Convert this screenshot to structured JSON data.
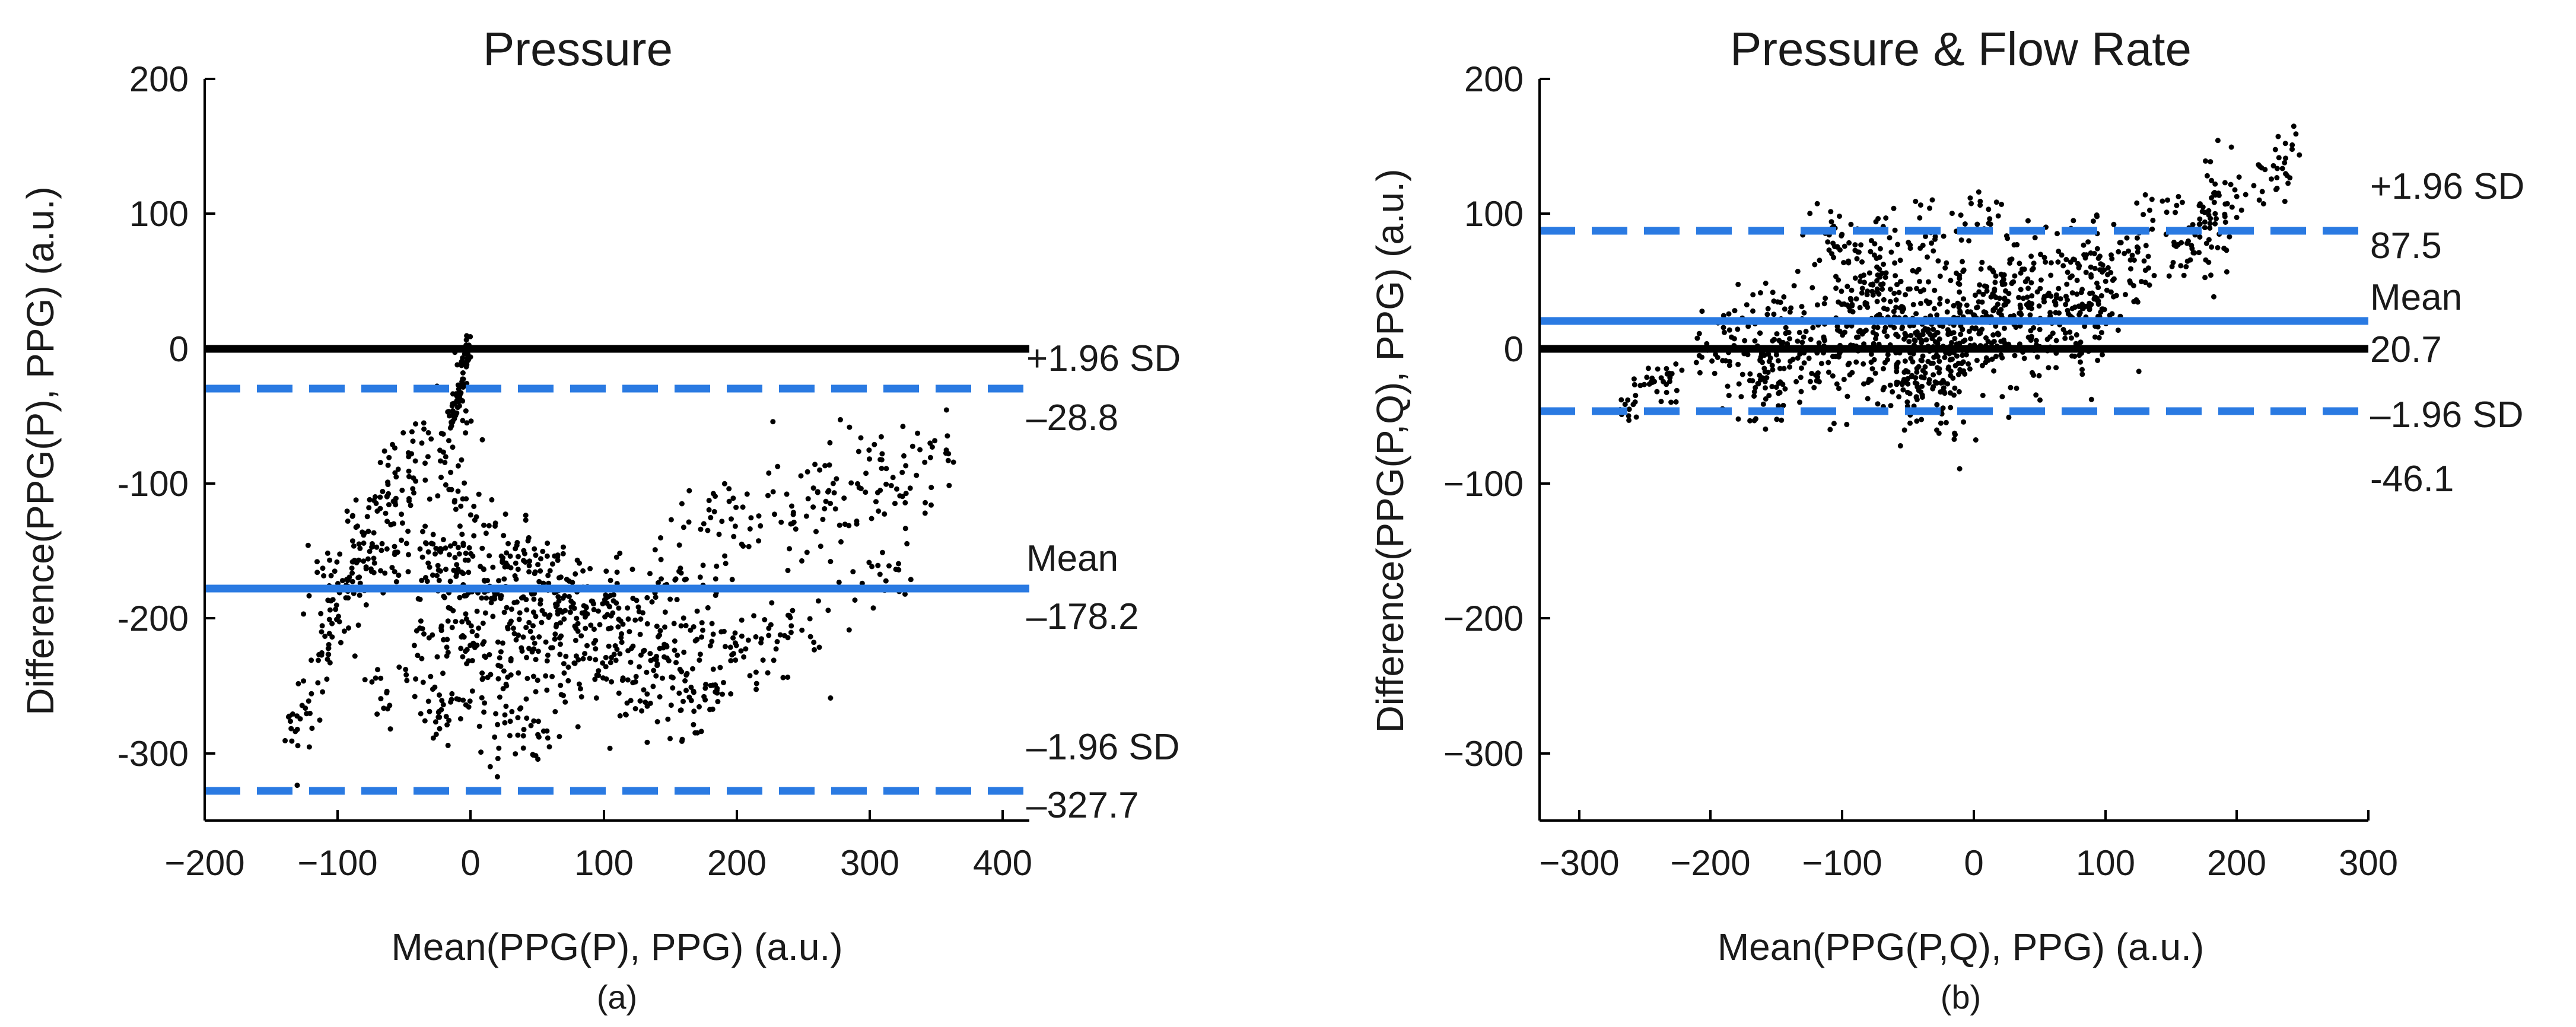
{
  "colors": {
    "mean_line": "#2a7ae2",
    "sd_line": "#2a7ae2",
    "zero_line": "#000000",
    "points": "#000000",
    "axis": "#000000"
  },
  "chart_data": [
    {
      "type": "scatter",
      "panel_label": "(a)",
      "title": "Pressure",
      "xlabel": "Mean(PPG(P), PPG) (a.u.)",
      "ylabel": "Difference(PPG(P), PPG) (a.u.)",
      "xlim": [
        -200,
        420
      ],
      "ylim": [
        -350,
        200
      ],
      "xticks": [
        -200,
        -100,
        0,
        100,
        200,
        300,
        400
      ],
      "yticks": [
        200,
        100,
        0,
        -100,
        -200,
        -300
      ],
      "xtick_labels": [
        "−200",
        "−100",
        "0",
        "100",
        "200",
        "300",
        "400"
      ],
      "ytick_labels": [
        "200",
        "100",
        "0",
        "-100",
        "-200",
        "-300"
      ],
      "zero_line": 0,
      "mean": -178.2,
      "upper_loa": -28.8,
      "lower_loa": -327.7,
      "line_labels": {
        "upper_name": "+1.96 SD",
        "upper_value": "–28.8",
        "mean_name": "Mean",
        "mean_value": "–178.2",
        "lower_name": "–1.96 SD",
        "lower_value": "–327.7"
      },
      "scatter_clusters": [
        {
          "x": [
            -140,
            -40
          ],
          "y": [
            -300,
            -60
          ],
          "spread": 15,
          "n": 110
        },
        {
          "x": [
            -15,
            0
          ],
          "y": [
            -60,
            10
          ],
          "spread": 6,
          "n": 60
        },
        {
          "x": [
            -120,
            0
          ],
          "y": [
            -200,
            -40
          ],
          "spread": 25,
          "n": 120
        },
        {
          "x": [
            -60,
            180
          ],
          "y": [
            -150,
            -200
          ],
          "spread": 18,
          "n": 180
        },
        {
          "x": [
            -20,
            200
          ],
          "y": [
            -180,
            -230
          ],
          "spread": 22,
          "n": 220
        },
        {
          "x": [
            -40,
            180
          ],
          "y": [
            -210,
            -270
          ],
          "spread": 20,
          "n": 180
        },
        {
          "x": [
            -80,
            60
          ],
          "y": [
            -250,
            -290
          ],
          "spread": 14,
          "n": 90
        },
        {
          "x": [
            150,
            360
          ],
          "y": [
            -150,
            -85
          ],
          "spread": 22,
          "n": 160
        },
        {
          "x": [
            180,
            330
          ],
          "y": [
            -240,
            -160
          ],
          "spread": 18,
          "n": 80
        },
        {
          "x": [
            -20,
            80
          ],
          "y": [
            -100,
            -200
          ],
          "spread": 20,
          "n": 80
        }
      ]
    },
    {
      "type": "scatter",
      "panel_label": "(b)",
      "title": "Pressure & Flow Rate",
      "xlabel": "Mean(PPG(P,Q), PPG) (a.u.)",
      "ylabel": "Difference(PPG(P,Q), PPG) (a.u.)",
      "xlim": [
        -330,
        300
      ],
      "ylim": [
        -350,
        200
      ],
      "xticks": [
        -300,
        -200,
        -100,
        0,
        100,
        200,
        300
      ],
      "yticks": [
        200,
        100,
        0,
        -100,
        -200,
        -300
      ],
      "xtick_labels": [
        "−300",
        "−200",
        "−100",
        "0",
        "100",
        "200",
        "300"
      ],
      "ytick_labels": [
        "200",
        "100",
        "0",
        "−100",
        "−200",
        "−300"
      ],
      "zero_line": 0,
      "mean": 20.7,
      "upper_loa": 87.5,
      "lower_loa": -46.1,
      "line_labels": {
        "upper_name": "+1.96 SD",
        "upper_value": "87.5",
        "mean_name": "Mean",
        "mean_value": "20.7",
        "lower_name": "–1.96 SD",
        "lower_value": "-46.1"
      },
      "scatter_clusters": [
        {
          "x": [
            -270,
            -180
          ],
          "y": [
            -45,
            10
          ],
          "spread": 10,
          "n": 70
        },
        {
          "x": [
            -180,
            100
          ],
          "y": [
            -10,
            40
          ],
          "spread": 28,
          "n": 650
        },
        {
          "x": [
            -120,
            -20
          ],
          "y": [
            90,
            0
          ],
          "spread": 14,
          "n": 120
        },
        {
          "x": [
            -60,
            40
          ],
          "y": [
            -40,
            50
          ],
          "spread": 18,
          "n": 150
        },
        {
          "x": [
            60,
            200
          ],
          "y": [
            20,
            110
          ],
          "spread": 22,
          "n": 180
        },
        {
          "x": [
            170,
            250
          ],
          "y": [
            90,
            145
          ],
          "spread": 12,
          "n": 50
        },
        {
          "x": [
            -100,
            20
          ],
          "y": [
            60,
            110
          ],
          "spread": 16,
          "n": 60
        },
        {
          "x": [
            -30,
            -10
          ],
          "y": [
            -30,
            -70
          ],
          "spread": 8,
          "n": 20
        }
      ]
    }
  ]
}
